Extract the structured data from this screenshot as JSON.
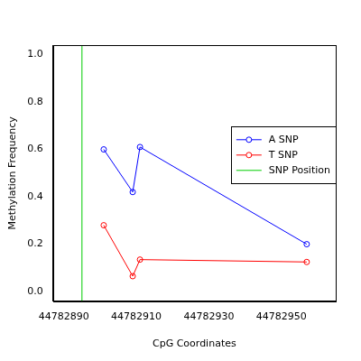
{
  "chart_data": {
    "type": "line",
    "x_label": "CpG Coordinates",
    "y_label": "Methylation Frequency",
    "xlim": [
      44782887,
      44782965
    ],
    "xticks": [
      44782890,
      44782910,
      44782930,
      44782950
    ],
    "ylim": [
      -0.04,
      1.04
    ],
    "yticks": [
      {
        "value": 0,
        "label": "0.0"
      },
      0.2,
      0.4,
      0.6,
      0.8,
      {
        "value": 1,
        "label": "1.0"
      }
    ],
    "grid": false,
    "legend": "right",
    "x": [
      44782901,
      44782909,
      44782911,
      44782957
    ],
    "series": [
      {
        "name": "A SNP",
        "color": "#0000ff",
        "marker": "open_circle",
        "line_style": "solid",
        "values": [
          0.6,
          0.42,
          0.61,
          0.2
        ]
      },
      {
        "name": "T SNP",
        "color": "#ff0000",
        "marker": "open_circle",
        "line_style": "solid",
        "values": [
          0.28,
          0.065,
          0.135,
          0.125
        ]
      },
      {
        "name": "SNP Position",
        "color": "#00cd00",
        "type": "vline",
        "line_style": "solid",
        "x": [
          44782895
        ]
      }
    ]
  }
}
